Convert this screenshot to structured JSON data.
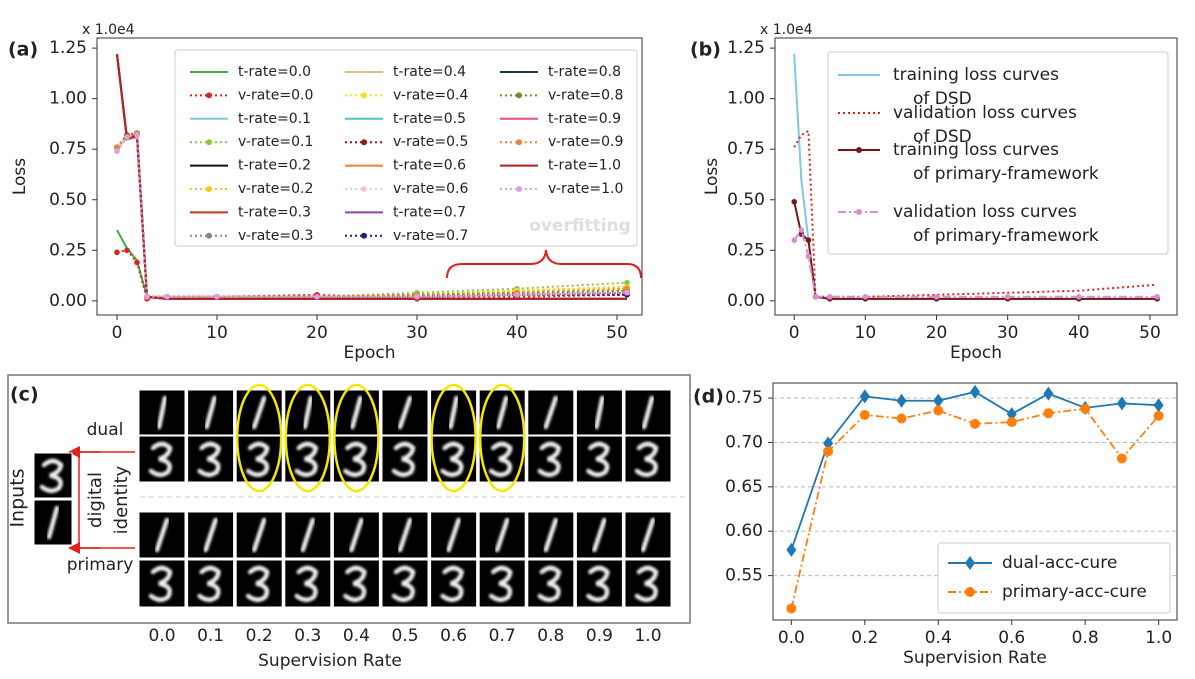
{
  "chart_data": [
    {
      "type": "line",
      "panel_label": "(a)",
      "offset_text": "x 1.0e4",
      "ylabel": "Loss",
      "xlabel": "Epoch",
      "annotation": "overfitting",
      "x": [
        0,
        1,
        2,
        3,
        5,
        10,
        20,
        30,
        40,
        51
      ],
      "xlim": [
        -2,
        52.5
      ],
      "ylim": [
        -0.07,
        1.3
      ],
      "xticks": [
        0,
        10,
        20,
        30,
        40,
        50
      ],
      "yticks": [
        {
          "value": 0,
          "label": "0.00"
        },
        {
          "value": 0.25,
          "label": "0.25"
        },
        {
          "value": 0.5,
          "label": "0.50"
        },
        {
          "value": 0.75,
          "label": "0.75"
        },
        {
          "value": 1,
          "label": "1.00"
        },
        {
          "value": 1.25,
          "label": "1.25"
        }
      ],
      "series": [
        {
          "name": "t-rate=0.0",
          "color": "#3cb043",
          "linestyle": "solid",
          "values": [
            0.35,
            0.26,
            0.2,
            0.02,
            0.01,
            0.01,
            0.01,
            0.01,
            0.01,
            0.01
          ]
        },
        {
          "name": "v-rate=0.0",
          "color": "#e0201c",
          "linestyle": "dotted",
          "marker": "circle",
          "values": [
            0.24,
            0.25,
            0.19,
            0.01,
            0.02,
            0.02,
            0.03,
            0.01,
            0.02,
            0.03
          ]
        },
        {
          "name": "t-rate=0.1",
          "color": "#7ec8dd",
          "linestyle": "solid",
          "values": [
            1.22,
            0.8,
            0.82,
            0.02,
            0.01,
            0.01,
            0.01,
            0.01,
            0.01,
            0.01
          ]
        },
        {
          "name": "v-rate=0.1",
          "color": "#8cc63f",
          "linestyle": "dotted",
          "marker": "circle",
          "values": [
            0.76,
            0.82,
            0.83,
            0.02,
            0.02,
            0.02,
            0.02,
            0.04,
            0.06,
            0.09
          ]
        },
        {
          "name": "t-rate=0.2",
          "color": "#111111",
          "linestyle": "solid",
          "values": [
            1.22,
            0.8,
            0.81,
            0.02,
            0.01,
            0.01,
            0.01,
            0.01,
            0.01,
            0.01
          ]
        },
        {
          "name": "v-rate=0.2",
          "color": "#f5c518",
          "linestyle": "dotted",
          "marker": "circle",
          "values": [
            0.76,
            0.81,
            0.83,
            0.02,
            0.02,
            0.02,
            0.02,
            0.03,
            0.05,
            0.07
          ]
        },
        {
          "name": "t-rate=0.3",
          "color": "#c0392b",
          "linestyle": "solid",
          "values": [
            1.22,
            0.8,
            0.82,
            0.02,
            0.01,
            0.01,
            0.01,
            0.01,
            0.01,
            0.01
          ]
        },
        {
          "name": "v-rate=0.3",
          "color": "#888888",
          "linestyle": "dotted",
          "marker": "circle",
          "values": [
            0.75,
            0.81,
            0.82,
            0.02,
            0.02,
            0.02,
            0.02,
            0.02,
            0.03,
            0.04
          ]
        },
        {
          "name": "t-rate=0.4",
          "color": "#dcc08f",
          "linestyle": "solid",
          "values": [
            1.21,
            0.8,
            0.81,
            0.02,
            0.01,
            0.01,
            0.01,
            0.01,
            0.01,
            0.01
          ]
        },
        {
          "name": "v-rate=0.4",
          "color": "#f4e11d",
          "linestyle": "dotted",
          "marker": "circle",
          "values": [
            0.76,
            0.82,
            0.83,
            0.02,
            0.02,
            0.02,
            0.02,
            0.03,
            0.05,
            0.06
          ]
        },
        {
          "name": "t-rate=0.5",
          "color": "#4fc3c8",
          "linestyle": "solid",
          "values": [
            1.22,
            0.8,
            0.82,
            0.02,
            0.01,
            0.01,
            0.01,
            0.01,
            0.01,
            0.01
          ]
        },
        {
          "name": "v-rate=0.5",
          "color": "#8b1a1a",
          "linestyle": "dotted",
          "marker": "circle",
          "values": [
            0.76,
            0.82,
            0.83,
            0.02,
            0.02,
            0.02,
            0.02,
            0.02,
            0.03,
            0.04
          ]
        },
        {
          "name": "t-rate=0.6",
          "color": "#e8843c",
          "linestyle": "solid",
          "values": [
            1.22,
            0.81,
            0.82,
            0.02,
            0.01,
            0.01,
            0.01,
            0.01,
            0.01,
            0.01
          ]
        },
        {
          "name": "v-rate=0.6",
          "color": "#f3c6cf",
          "linestyle": "dotted",
          "marker": "circle",
          "values": [
            0.75,
            0.82,
            0.83,
            0.02,
            0.02,
            0.02,
            0.02,
            0.02,
            0.03,
            0.05
          ]
        },
        {
          "name": "t-rate=0.7",
          "color": "#8e44ad",
          "linestyle": "solid",
          "values": [
            1.22,
            0.8,
            0.82,
            0.02,
            0.01,
            0.01,
            0.01,
            0.01,
            0.01,
            0.01
          ]
        },
        {
          "name": "v-rate=0.7",
          "color": "#1a237e",
          "linestyle": "dotted",
          "marker": "circle",
          "values": [
            0.76,
            0.82,
            0.83,
            0.02,
            0.02,
            0.02,
            0.02,
            0.02,
            0.03,
            0.03
          ]
        },
        {
          "name": "t-rate=0.8",
          "color": "#1f3b4d",
          "linestyle": "solid",
          "values": [
            1.22,
            0.8,
            0.82,
            0.02,
            0.01,
            0.01,
            0.01,
            0.01,
            0.01,
            0.01
          ]
        },
        {
          "name": "v-rate=0.8",
          "color": "#6b8e23",
          "linestyle": "dotted",
          "marker": "circle",
          "values": [
            0.76,
            0.82,
            0.83,
            0.02,
            0.02,
            0.02,
            0.02,
            0.03,
            0.04,
            0.05
          ]
        },
        {
          "name": "t-rate=0.9",
          "color": "#e84a8a",
          "linestyle": "solid",
          "values": [
            1.22,
            0.8,
            0.81,
            0.02,
            0.01,
            0.01,
            0.01,
            0.01,
            0.01,
            0.01
          ]
        },
        {
          "name": "v-rate=0.9",
          "color": "#e8843c",
          "linestyle": "dotted",
          "marker": "circle",
          "values": [
            0.76,
            0.81,
            0.83,
            0.02,
            0.02,
            0.02,
            0.02,
            0.03,
            0.04,
            0.06
          ]
        },
        {
          "name": "t-rate=1.0",
          "color": "#b22222",
          "linestyle": "solid",
          "values": [
            1.22,
            0.8,
            0.82,
            0.02,
            0.01,
            0.01,
            0.01,
            0.01,
            0.01,
            0.01
          ]
        },
        {
          "name": "v-rate=1.0",
          "color": "#dda0dd",
          "linestyle": "dotted",
          "marker": "circle",
          "values": [
            0.74,
            0.81,
            0.82,
            0.02,
            0.02,
            0.02,
            0.02,
            0.02,
            0.03,
            0.04
          ]
        }
      ]
    },
    {
      "type": "line",
      "panel_label": "(b)",
      "offset_text": "x 1.0e4",
      "ylabel": "Loss",
      "xlabel": "Epoch",
      "x": [
        0,
        1,
        2,
        3,
        5,
        10,
        20,
        30,
        40,
        51
      ],
      "xlim": [
        -2.7,
        53.8
      ],
      "ylim": [
        -0.07,
        1.3
      ],
      "xticks": [
        0,
        10,
        20,
        30,
        40,
        50
      ],
      "yticks": [
        {
          "value": 0,
          "label": "0.00"
        },
        {
          "value": 0.25,
          "label": "0.25"
        },
        {
          "value": 0.5,
          "label": "0.50"
        },
        {
          "value": 0.75,
          "label": "0.75"
        },
        {
          "value": 1,
          "label": "1.00"
        },
        {
          "value": 1.25,
          "label": "1.25"
        }
      ],
      "series": [
        {
          "name": "training loss curves of DSD",
          "color": "#7ec8e3",
          "linestyle": "solid",
          "values": [
            1.22,
            0.6,
            0.3,
            0.02,
            0.01,
            0.01,
            0.01,
            0.01,
            0.01,
            0.01
          ]
        },
        {
          "name": "validation loss curves of DSD",
          "color": "#e0201c",
          "linestyle": "dotted",
          "values": [
            0.76,
            0.82,
            0.84,
            0.02,
            0.02,
            0.02,
            0.03,
            0.04,
            0.05,
            0.08
          ]
        },
        {
          "name": "training loss curves of primary-framework",
          "color": "#7b1414",
          "linestyle": "solid",
          "marker": "circle",
          "values": [
            0.49,
            0.33,
            0.3,
            0.02,
            0.01,
            0.01,
            0.01,
            0.01,
            0.01,
            0.01
          ]
        },
        {
          "name": "validation loss curves of primary-framework",
          "color": "#d58fd0",
          "linestyle": "dashdot",
          "marker": "circle",
          "values": [
            0.3,
            0.35,
            0.22,
            0.02,
            0.02,
            0.02,
            0.02,
            0.02,
            0.02,
            0.02
          ]
        }
      ]
    },
    {
      "type": "line",
      "panel_label": "(d)",
      "xlabel": "Supervision Rate",
      "grid": true,
      "x": [
        0,
        0.1,
        0.2,
        0.3,
        0.4,
        0.5,
        0.6,
        0.7,
        0.8,
        0.9,
        1.0
      ],
      "xlim": [
        -0.05,
        1.05
      ],
      "ylim": [
        0.5,
        0.767
      ],
      "xticks": [
        {
          "value": 0,
          "label": "0.0"
        },
        0.2,
        0.4,
        0.6,
        0.8,
        {
          "value": 1,
          "label": "1.0"
        }
      ],
      "yticks": [
        0.55,
        {
          "value": 0.6,
          "label": "0.60"
        },
        0.65,
        {
          "value": 0.7,
          "label": "0.70"
        },
        0.75
      ],
      "series": [
        {
          "name": "dual-acc-cure",
          "color": "#1f77b4",
          "linestyle": "solid",
          "marker": "diamond",
          "values": [
            0.579,
            0.699,
            0.752,
            0.747,
            0.747,
            0.757,
            0.732,
            0.755,
            0.739,
            0.744,
            0.742
          ]
        },
        {
          "name": "primary-acc-cure",
          "color": "#ff7f0e",
          "linestyle": "dashdot",
          "marker": "circle",
          "values": [
            0.513,
            0.69,
            0.731,
            0.727,
            0.736,
            0.721,
            0.723,
            0.733,
            0.738,
            0.682,
            0.73
          ]
        }
      ]
    }
  ],
  "figure_c": {
    "panel_label": "(c)",
    "row_labels": [
      "dual",
      "primary"
    ],
    "inputs_label": "Inputs",
    "identity_label": [
      "digital",
      "identity"
    ],
    "columns": [
      "0.0",
      "0.1",
      "0.2",
      "0.3",
      "0.4",
      "0.5",
      "0.6",
      "0.7",
      "0.8",
      "0.9",
      "1.0"
    ],
    "xlabel": "Supervision Rate"
  }
}
